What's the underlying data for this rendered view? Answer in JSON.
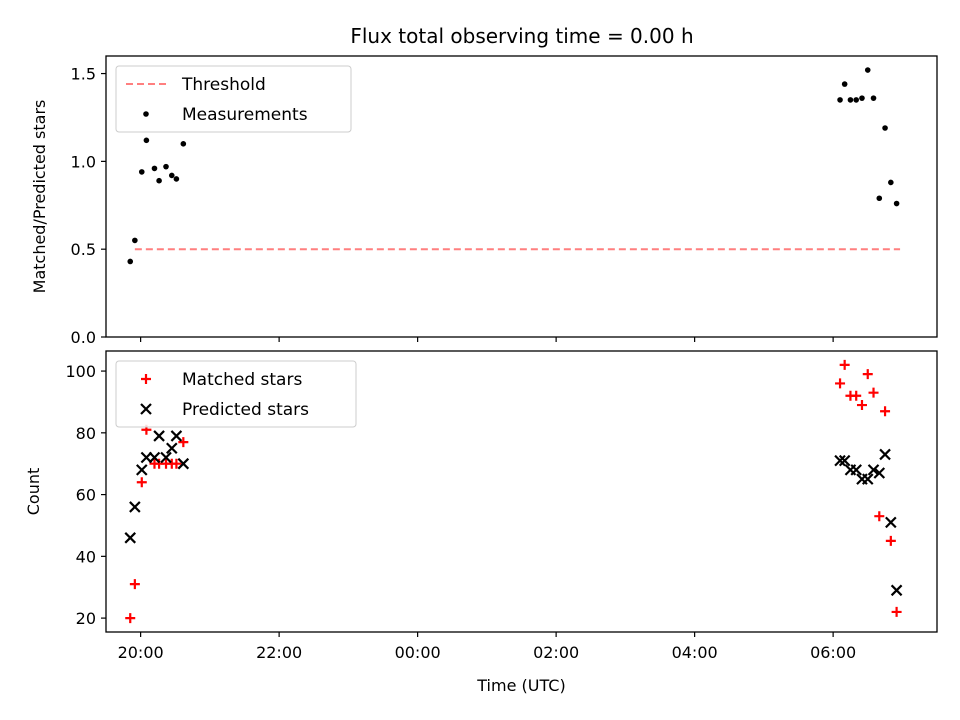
{
  "chart_data": [
    {
      "type": "scatter",
      "title": "Flux total observing time = 0.00 h",
      "ylabel": "Matched/Predicted stars",
      "xlabel": "",
      "x_axis": {
        "kind": "time",
        "start": "19:30",
        "end": "07:30",
        "ticks": [
          "20:00",
          "22:00",
          "00:00",
          "02:00",
          "04:00",
          "06:00"
        ],
        "tick_labels_shown": false
      },
      "ylim": [
        0,
        1.6
      ],
      "yticks": [
        "0.0",
        "0.5",
        "1.0",
        "1.5"
      ],
      "legend": {
        "placement": "top-left"
      },
      "series": [
        {
          "name": "Threshold",
          "style": "dashed-line",
          "color": "#ff7f7f",
          "points": [
            {
              "x": "19:55",
              "y": 0.5
            },
            {
              "x": "06:58",
              "y": 0.5
            }
          ]
        },
        {
          "name": "Measurements",
          "style": "dot",
          "color": "#000000",
          "points": [
            {
              "x": "19:51",
              "y": 0.43
            },
            {
              "x": "19:55",
              "y": 0.55
            },
            {
              "x": "20:01",
              "y": 0.94
            },
            {
              "x": "20:05",
              "y": 1.12
            },
            {
              "x": "20:12",
              "y": 0.96
            },
            {
              "x": "20:16",
              "y": 0.89
            },
            {
              "x": "20:22",
              "y": 0.97
            },
            {
              "x": "20:27",
              "y": 0.92
            },
            {
              "x": "20:31",
              "y": 0.9
            },
            {
              "x": "20:37",
              "y": 1.1
            },
            {
              "x": "06:06",
              "y": 1.35
            },
            {
              "x": "06:10",
              "y": 1.44
            },
            {
              "x": "06:15",
              "y": 1.35
            },
            {
              "x": "06:20",
              "y": 1.35
            },
            {
              "x": "06:25",
              "y": 1.36
            },
            {
              "x": "06:30",
              "y": 1.52
            },
            {
              "x": "06:35",
              "y": 1.36
            },
            {
              "x": "06:40",
              "y": 0.79
            },
            {
              "x": "06:45",
              "y": 1.19
            },
            {
              "x": "06:50",
              "y": 0.88
            },
            {
              "x": "06:55",
              "y": 0.76
            }
          ]
        }
      ]
    },
    {
      "type": "scatter",
      "title": "",
      "ylabel": "Count",
      "xlabel": "Time (UTC)",
      "x_axis": {
        "kind": "time",
        "start": "19:30",
        "end": "07:30",
        "ticks": [
          "20:00",
          "22:00",
          "00:00",
          "02:00",
          "04:00",
          "06:00"
        ],
        "tick_labels_shown": true
      },
      "ylim": [
        15.5,
        106.5
      ],
      "yticks": [
        "20",
        "40",
        "60",
        "80",
        "100"
      ],
      "legend": {
        "placement": "top-left"
      },
      "series": [
        {
          "name": "Matched stars",
          "style": "plus",
          "color": "#ff0000",
          "points": [
            {
              "x": "19:51",
              "y": 20
            },
            {
              "x": "19:55",
              "y": 31
            },
            {
              "x": "20:01",
              "y": 64
            },
            {
              "x": "20:05",
              "y": 81
            },
            {
              "x": "20:12",
              "y": 70
            },
            {
              "x": "20:16",
              "y": 70
            },
            {
              "x": "20:22",
              "y": 70
            },
            {
              "x": "20:27",
              "y": 70
            },
            {
              "x": "20:31",
              "y": 70
            },
            {
              "x": "20:37",
              "y": 77
            },
            {
              "x": "06:06",
              "y": 96
            },
            {
              "x": "06:10",
              "y": 102
            },
            {
              "x": "06:15",
              "y": 92
            },
            {
              "x": "06:20",
              "y": 92
            },
            {
              "x": "06:25",
              "y": 89
            },
            {
              "x": "06:30",
              "y": 99
            },
            {
              "x": "06:35",
              "y": 93
            },
            {
              "x": "06:40",
              "y": 53
            },
            {
              "x": "06:45",
              "y": 87
            },
            {
              "x": "06:50",
              "y": 45
            },
            {
              "x": "06:55",
              "y": 22
            }
          ]
        },
        {
          "name": "Predicted stars",
          "style": "x",
          "color": "#000000",
          "points": [
            {
              "x": "19:51",
              "y": 46
            },
            {
              "x": "19:55",
              "y": 56
            },
            {
              "x": "20:01",
              "y": 68
            },
            {
              "x": "20:05",
              "y": 72
            },
            {
              "x": "20:12",
              "y": 72
            },
            {
              "x": "20:16",
              "y": 79
            },
            {
              "x": "20:22",
              "y": 72
            },
            {
              "x": "20:27",
              "y": 75
            },
            {
              "x": "20:31",
              "y": 79
            },
            {
              "x": "20:37",
              "y": 70
            },
            {
              "x": "06:06",
              "y": 71
            },
            {
              "x": "06:10",
              "y": 71
            },
            {
              "x": "06:15",
              "y": 68
            },
            {
              "x": "06:20",
              "y": 68
            },
            {
              "x": "06:25",
              "y": 65
            },
            {
              "x": "06:30",
              "y": 65
            },
            {
              "x": "06:35",
              "y": 68
            },
            {
              "x": "06:40",
              "y": 67
            },
            {
              "x": "06:45",
              "y": 73
            },
            {
              "x": "06:50",
              "y": 51
            },
            {
              "x": "06:55",
              "y": 29
            }
          ]
        }
      ]
    }
  ]
}
